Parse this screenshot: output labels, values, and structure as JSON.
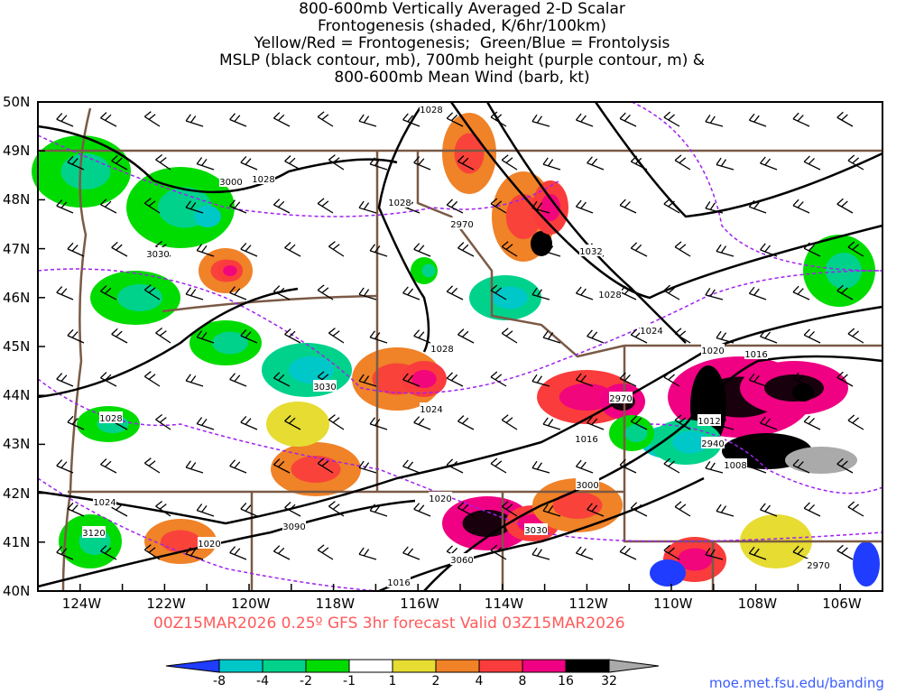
{
  "title_lines": [
    "800-600mb Vertically Averaged 2-D Scalar",
    "Frontogenesis (shaded, K/6hr/100km)",
    "Yellow/Red = Frontogenesis;  Green/Blue = Frontolysis",
    "MSLP (black contour, mb), 700mb height (purple contour, m) &",
    "800-600mb Mean Wind (barb, kt)"
  ],
  "lat_labels": [
    "50N",
    "49N",
    "48N",
    "47N",
    "46N",
    "45N",
    "44N",
    "43N",
    "42N",
    "41N",
    "40N"
  ],
  "lon_labels": [
    "124W",
    "122W",
    "120W",
    "118W",
    "116W",
    "114W",
    "112W",
    "110W",
    "108W",
    "106W"
  ],
  "subtitle": "00Z15MAR2026 0.25º GFS 3hr forecast Valid 03Z15MAR2026",
  "credit": "moe.met.fsu.edu/banding",
  "colorbar": {
    "colors": [
      "#1f3cff",
      "#00c8c8",
      "#00d28c",
      "#00dc00",
      "#ffffff",
      "#e6dc32",
      "#f08228",
      "#fa3c3c",
      "#f00082",
      "#000000",
      "#aaaaaa"
    ],
    "labels": [
      "-8",
      "-4",
      "-2",
      "-1",
      "1",
      "2",
      "4",
      "8",
      "16",
      "32"
    ]
  },
  "contour_labels": {
    "mslp": [
      "1028",
      "1028",
      "1028",
      "1032",
      "1028",
      "1024",
      "1028",
      "1024",
      "1028",
      "1020",
      "1016",
      "1016",
      "1012",
      "1008",
      "1020",
      "1024",
      "1020",
      "1016"
    ],
    "height": [
      "3000",
      "3030",
      "2970",
      "3030",
      "2970",
      "2940",
      "3000",
      "3090",
      "3120",
      "3030",
      "3060",
      "2970"
    ]
  }
}
